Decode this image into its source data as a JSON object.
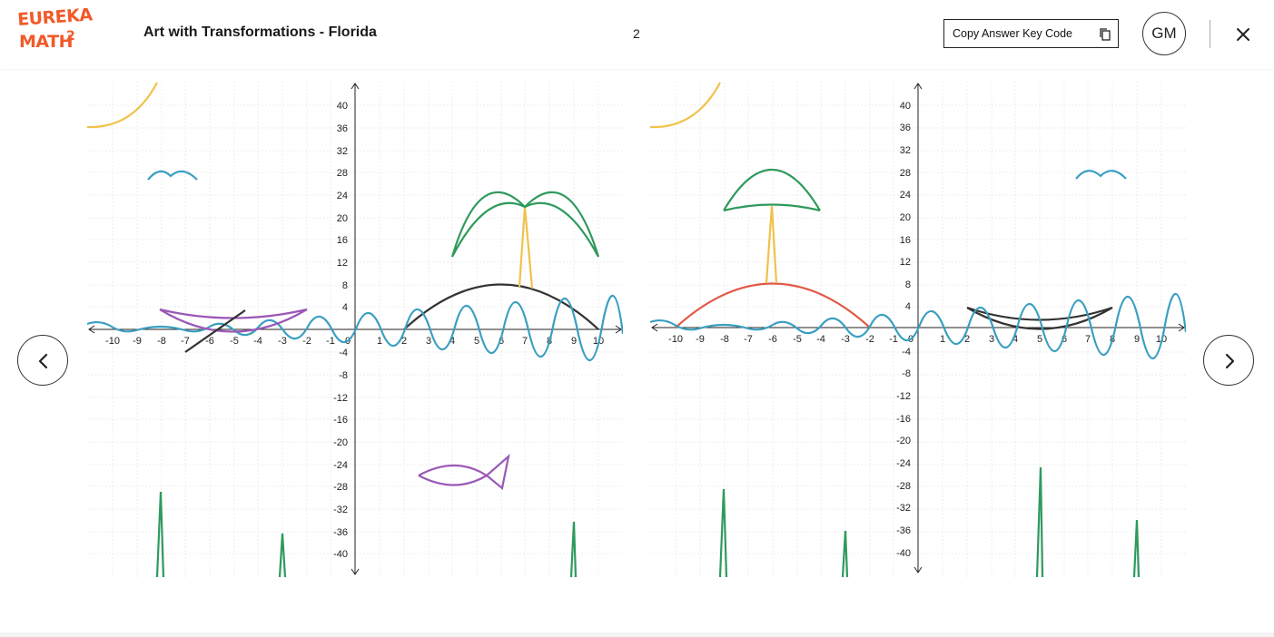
{
  "header": {
    "logo_line1": "EUREKA",
    "logo_line2": "MATH",
    "logo_sup": "2",
    "title": "Art with Transformations - Florida",
    "page_number": "2",
    "copy_button_label": "Copy Answer Key Code",
    "copy_icon": "copy-icon",
    "avatar_initials": "GM",
    "close_icon": "close-icon"
  },
  "navigation": {
    "prev_icon": "chevron-left-icon",
    "next_icon": "chevron-right-icon"
  },
  "graphs": {
    "left": {
      "x_ticks": [
        "-10",
        "-9",
        "-8",
        "-7",
        "-6",
        "-5",
        "-4",
        "-3",
        "-2",
        "-1",
        "0",
        "1",
        "2",
        "3",
        "4",
        "5",
        "6",
        "7",
        "8",
        "9",
        "10"
      ],
      "y_ticks": [
        "40",
        "36",
        "32",
        "28",
        "24",
        "20",
        "16",
        "12",
        "8",
        "4",
        "-4",
        "-8",
        "-12",
        "-16",
        "-20",
        "-24",
        "-28",
        "-32",
        "-36",
        "-40"
      ]
    },
    "right": {
      "x_ticks": [
        "-10",
        "-9",
        "-8",
        "-7",
        "-6",
        "-5",
        "-4",
        "-3",
        "-2",
        "-1",
        "0",
        "1",
        "2",
        "3",
        "4",
        "5",
        "6",
        "7",
        "8",
        "9",
        "10"
      ],
      "y_ticks": [
        "40",
        "36",
        "32",
        "28",
        "24",
        "20",
        "16",
        "12",
        "8",
        "4",
        "-4",
        "-8",
        "-12",
        "-16",
        "-20",
        "-24",
        "-28",
        "-32",
        "-36",
        "-40"
      ]
    }
  },
  "colors": {
    "brand": "#f15a29",
    "sun": "#f0c24b",
    "water": "#3a9fc1",
    "palm": "#2f9a5c",
    "trunk": "#f0c24b",
    "island_left": "#333333",
    "island_right": "#e05a4a",
    "boat": "#9b59b6",
    "grid": "#e9e9e9"
  }
}
